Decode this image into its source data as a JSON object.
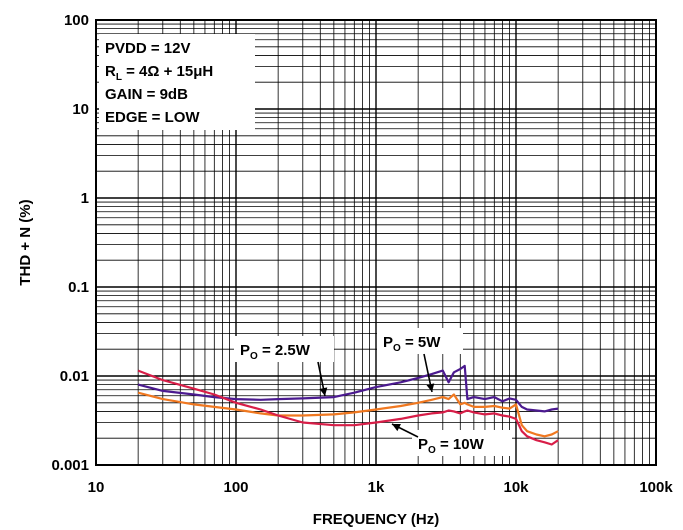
{
  "chart_data": {
    "type": "line",
    "xlabel": "FREQUENCY (Hz)",
    "ylabel": "THD + N (%)",
    "xscale": "log",
    "yscale": "log",
    "xlim": [
      10,
      100000
    ],
    "ylim": [
      0.001,
      100
    ],
    "grid": true,
    "xticks": [
      {
        "value": 10,
        "label": "10"
      },
      {
        "value": 100,
        "label": "100"
      },
      {
        "value": 1000,
        "label": "1k"
      },
      {
        "value": 10000,
        "label": "10k"
      },
      {
        "value": 100000,
        "label": "100k"
      }
    ],
    "yticks": [
      {
        "value": 100,
        "label": "100"
      },
      {
        "value": 10,
        "label": "10"
      },
      {
        "value": 1,
        "label": "1"
      },
      {
        "value": 0.1,
        "label": "0.1"
      },
      {
        "value": 0.01,
        "label": "0.01"
      },
      {
        "value": 0.001,
        "label": "0.001"
      }
    ],
    "conditions": [
      {
        "text": "PVDD = 12V"
      },
      {
        "base": "R",
        "sub": "L",
        "rest": " = 4Ω + 15μH"
      },
      {
        "text": "GAIN = 9dB"
      },
      {
        "text": "EDGE = LOW"
      }
    ],
    "series": [
      {
        "name": "PO = 2.5W",
        "label": {
          "base": "P",
          "sub": "O",
          "rest": " = 2.5W"
        },
        "color": "#4b1a8f",
        "x": [
          20,
          30,
          50,
          70,
          100,
          150,
          200,
          300,
          500,
          700,
          1000,
          1500,
          2000,
          2500,
          3000,
          3300,
          3600,
          4000,
          4300,
          4500,
          5000,
          6000,
          7000,
          8000,
          9000,
          10000,
          11000,
          12000,
          14000,
          16000,
          18000,
          20000
        ],
        "y": [
          0.008,
          0.0068,
          0.0062,
          0.0058,
          0.0055,
          0.0054,
          0.0055,
          0.0056,
          0.0058,
          0.0065,
          0.0075,
          0.0085,
          0.0095,
          0.0105,
          0.0115,
          0.0085,
          0.011,
          0.012,
          0.013,
          0.0055,
          0.0058,
          0.0055,
          0.0058,
          0.0052,
          0.0056,
          0.0054,
          0.0045,
          0.0042,
          0.0041,
          0.004,
          0.0042,
          0.0043
        ]
      },
      {
        "name": "PO = 5W",
        "label": {
          "base": "P",
          "sub": "O",
          "rest": " = 5W"
        },
        "color": "#f07820",
        "x": [
          20,
          30,
          50,
          70,
          100,
          150,
          200,
          300,
          500,
          700,
          1000,
          1500,
          2000,
          2500,
          3000,
          3300,
          3600,
          4000,
          4300,
          4500,
          5000,
          6000,
          7000,
          8000,
          9000,
          10000,
          11000,
          12000,
          14000,
          16000,
          18000,
          20000
        ],
        "y": [
          0.0065,
          0.0055,
          0.0048,
          0.0045,
          0.0042,
          0.0038,
          0.0036,
          0.0036,
          0.0037,
          0.0039,
          0.0042,
          0.0046,
          0.005,
          0.0054,
          0.0058,
          0.0055,
          0.0062,
          0.0048,
          0.005,
          0.0048,
          0.0045,
          0.0045,
          0.0046,
          0.0044,
          0.0043,
          0.0048,
          0.0028,
          0.0024,
          0.0022,
          0.0021,
          0.0022,
          0.0024
        ]
      },
      {
        "name": "PO = 10W",
        "label": {
          "base": "P",
          "sub": "O",
          "rest": " = 10W"
        },
        "color": "#d81e48",
        "x": [
          20,
          30,
          50,
          70,
          100,
          150,
          200,
          300,
          500,
          700,
          1000,
          1500,
          2000,
          2500,
          3000,
          3300,
          3600,
          4000,
          4300,
          4500,
          5000,
          6000,
          7000,
          8000,
          9000,
          10000,
          11000,
          12000,
          14000,
          16000,
          18000,
          20000
        ],
        "y": [
          0.0115,
          0.009,
          0.0072,
          0.0062,
          0.005,
          0.0042,
          0.0036,
          0.003,
          0.0028,
          0.0028,
          0.003,
          0.0033,
          0.0036,
          0.0038,
          0.0039,
          0.0041,
          0.004,
          0.0038,
          0.004,
          0.0041,
          0.0039,
          0.0037,
          0.0038,
          0.0036,
          0.0035,
          0.0033,
          0.0024,
          0.0021,
          0.0019,
          0.0018,
          0.0017,
          0.0019
        ]
      }
    ]
  }
}
